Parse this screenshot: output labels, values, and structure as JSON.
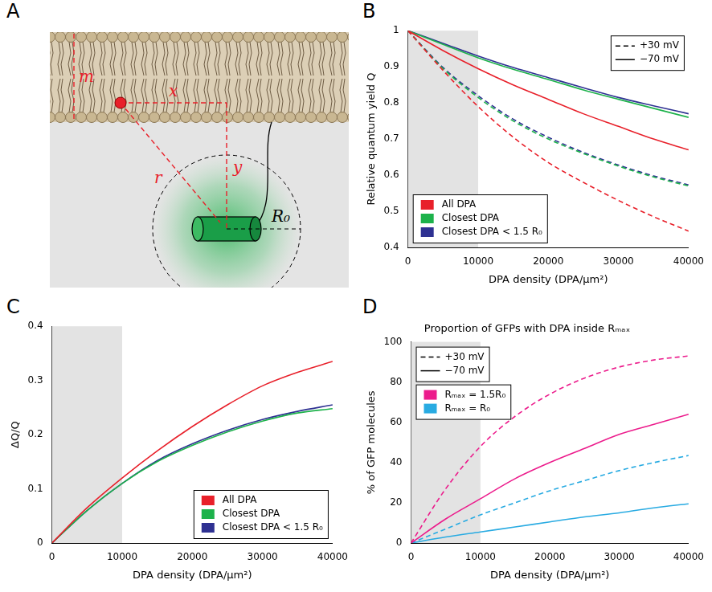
{
  "diagram": {
    "letter": "A",
    "labels": {
      "m": "m",
      "x": "x",
      "y": "y",
      "r": "r",
      "radius": "R₀"
    }
  },
  "chart_data": [
    {
      "type": "line",
      "letter": "B",
      "x_label": "DPA density (DPA/μm²)",
      "y_label": "Relative quantum yield Q",
      "x": [
        0,
        5000,
        10000,
        15000,
        20000,
        25000,
        30000,
        35000,
        40000
      ],
      "xlim": [
        0,
        40000
      ],
      "xticks": [
        0,
        10000,
        20000,
        30000,
        40000
      ],
      "ylim": [
        0.4,
        1
      ],
      "yticks": [
        0.4,
        0.5,
        0.6,
        0.7,
        0.8,
        0.9,
        1
      ],
      "grid": false,
      "shaded_range": [
        0,
        10000
      ],
      "legend": "bottom-left",
      "line_styles": {
        "legend": "top-right",
        "entries": [
          {
            "label": "+30 mV",
            "line_style": "dashed"
          },
          {
            "label": "−70 mV",
            "line_style": "solid"
          }
        ]
      },
      "series": [
        {
          "name": "All DPA",
          "color": "#e8202a",
          "lines": [
            {
              "line_style": "dashed",
              "values": [
                1,
                0.89,
                0.79,
                0.705,
                0.635,
                0.58,
                0.53,
                0.485,
                0.445
              ]
            },
            {
              "line_style": "solid",
              "values": [
                1,
                0.945,
                0.895,
                0.85,
                0.81,
                0.77,
                0.735,
                0.7,
                0.67
              ]
            }
          ]
        },
        {
          "name": "Closest DPA",
          "color": "#1db24b",
          "lines": [
            {
              "line_style": "dashed",
              "values": [
                1,
                0.895,
                0.815,
                0.75,
                0.7,
                0.66,
                0.625,
                0.595,
                0.57
              ]
            },
            {
              "line_style": "solid",
              "values": [
                1,
                0.962,
                0.925,
                0.893,
                0.865,
                0.836,
                0.81,
                0.785,
                0.76
              ]
            }
          ]
        },
        {
          "name": "Closest DPA < 1.5 R₀",
          "color": "#2e3192",
          "lines": [
            {
              "line_style": "dashed",
              "values": [
                1,
                0.898,
                0.82,
                0.755,
                0.705,
                0.663,
                0.628,
                0.598,
                0.573
              ]
            },
            {
              "line_style": "solid",
              "values": [
                1,
                0.965,
                0.93,
                0.898,
                0.87,
                0.842,
                0.815,
                0.792,
                0.77
              ]
            }
          ]
        }
      ]
    },
    {
      "type": "line",
      "letter": "C",
      "x_label": "DPA density (DPA/μm²)",
      "y_label": "ΔQ/Q",
      "x": [
        0,
        5000,
        10000,
        15000,
        20000,
        25000,
        30000,
        35000,
        40000
      ],
      "xlim": [
        0,
        40000
      ],
      "xticks": [
        0,
        10000,
        20000,
        30000,
        40000
      ],
      "ylim": [
        0,
        0.4
      ],
      "yticks": [
        0,
        0.1,
        0.2,
        0.3,
        0.4
      ],
      "grid": false,
      "shaded_range": [
        0,
        10000
      ],
      "legend": "bottom-right",
      "series": [
        {
          "name": "All DPA",
          "color": "#e8202a",
          "lines": [
            {
              "line_style": "solid",
              "values": [
                0,
                0.065,
                0.12,
                0.17,
                0.215,
                0.255,
                0.29,
                0.315,
                0.335
              ]
            }
          ]
        },
        {
          "name": "Closest DPA",
          "color": "#1db24b",
          "lines": [
            {
              "line_style": "solid",
              "values": [
                0,
                0.06,
                0.11,
                0.15,
                0.18,
                0.205,
                0.225,
                0.24,
                0.248
              ]
            }
          ]
        },
        {
          "name": "Closest DPA < 1.5 R₀",
          "color": "#2e3192",
          "lines": [
            {
              "line_style": "solid",
              "values": [
                0,
                0.06,
                0.11,
                0.152,
                0.183,
                0.208,
                0.228,
                0.243,
                0.255
              ]
            }
          ]
        }
      ]
    },
    {
      "type": "line",
      "letter": "D",
      "title": "Proportion of GFPs with DPA inside Rₘₐₓ",
      "x_label": "DPA density (DPA/μm²)",
      "y_label": "% of GFP molecules",
      "x": [
        0,
        5000,
        10000,
        15000,
        20000,
        25000,
        30000,
        35000,
        40000
      ],
      "xlim": [
        0,
        40000
      ],
      "xticks": [
        0,
        10000,
        20000,
        30000,
        40000
      ],
      "ylim": [
        0,
        100
      ],
      "yticks": [
        0,
        20,
        40,
        60,
        80,
        100
      ],
      "grid": false,
      "shaded_range": [
        0,
        10000
      ],
      "legend": "top-left",
      "line_styles": {
        "legend": "top-left",
        "entries": [
          {
            "label": "+30 mV",
            "line_style": "dashed"
          },
          {
            "label": "−70 mV",
            "line_style": "solid"
          }
        ]
      },
      "series": [
        {
          "name": "Rₘₐₓ = 1.5R₀",
          "color": "#ec1c8c",
          "lines": [
            {
              "line_style": "dashed",
              "values": [
                0,
                27,
                48,
                63,
                74,
                82,
                87.5,
                91,
                93
              ]
            },
            {
              "line_style": "solid",
              "values": [
                0,
                12,
                22,
                32,
                40,
                47,
                54,
                59,
                64
              ]
            }
          ]
        },
        {
          "name": "Rₘₐₓ = R₀",
          "color": "#29abe2",
          "lines": [
            {
              "line_style": "dashed",
              "values": [
                0,
                7,
                14,
                20,
                26,
                31,
                36,
                40,
                43.5
              ]
            },
            {
              "line_style": "solid",
              "values": [
                0,
                3,
                5.5,
                8,
                10.5,
                13,
                15,
                17.5,
                19.5
              ]
            }
          ]
        }
      ]
    }
  ]
}
